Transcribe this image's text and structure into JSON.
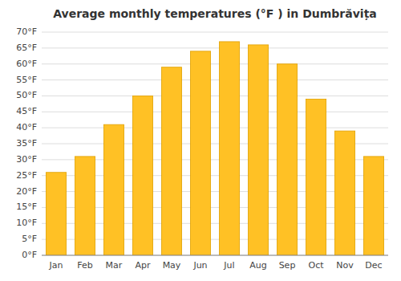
{
  "chart_data": {
    "type": "bar",
    "title": "Average monthly temperatures (°F ) in Dumbrăvița",
    "categories": [
      "Jan",
      "Feb",
      "Mar",
      "Apr",
      "May",
      "Jun",
      "Jul",
      "Aug",
      "Sep",
      "Oct",
      "Nov",
      "Dec"
    ],
    "values": [
      26,
      31,
      41,
      50,
      59,
      64,
      67,
      66,
      60,
      49,
      39,
      31
    ],
    "color": "#FFC125",
    "ylim": [
      0,
      70
    ],
    "yticks": [
      {
        "value": 0,
        "label": "0°F"
      },
      {
        "value": 5,
        "label": "5°F"
      },
      {
        "value": 10,
        "label": "10°F"
      },
      {
        "value": 15,
        "label": "15°F"
      },
      {
        "value": 20,
        "label": "20°F"
      },
      {
        "value": 25,
        "label": "25°F"
      },
      {
        "value": 30,
        "label": "30°F"
      },
      {
        "value": 35,
        "label": "35°F"
      },
      {
        "value": 40,
        "label": "40°F"
      },
      {
        "value": 45,
        "label": "45°F"
      },
      {
        "value": 50,
        "label": "50°F"
      },
      {
        "value": 55,
        "label": "55°F"
      },
      {
        "value": 60,
        "label": "60°F"
      },
      {
        "value": 65,
        "label": "65°F"
      },
      {
        "value": 70,
        "label": "70°F"
      }
    ],
    "grid": true
  }
}
